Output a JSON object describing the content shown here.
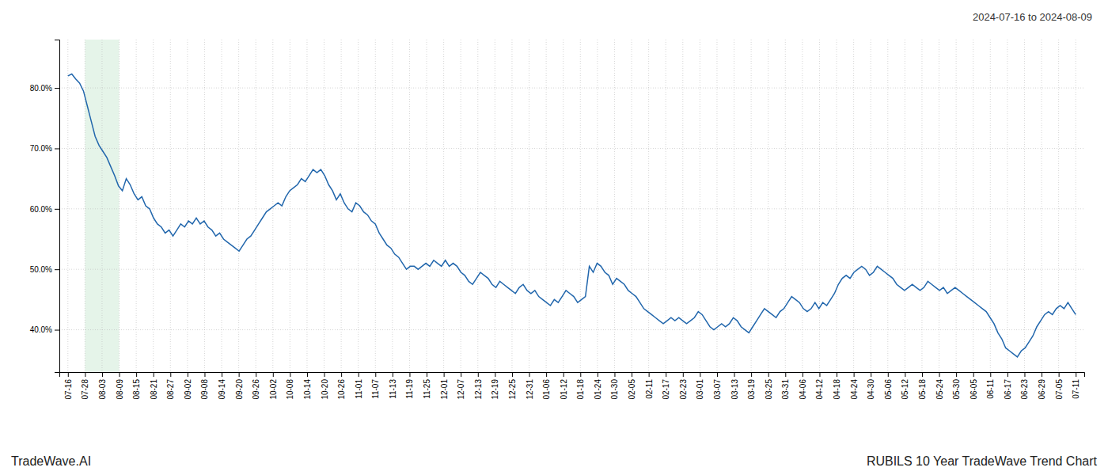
{
  "chart_data": {
    "type": "line",
    "title": "RUBILS 10 Year TradeWave Trend Chart",
    "subtitle": "2024-07-16 to 2024-08-09",
    "annotations": [
      "TradeWave.AI"
    ],
    "color": "#2166ac",
    "grid": true,
    "highlight": {
      "start": 1,
      "end": 3,
      "color": "#d4edda"
    },
    "xlim": [
      -0.5,
      59.5
    ],
    "xticks": [
      {
        "value": 0,
        "label": "07-16"
      },
      {
        "value": 1,
        "label": "07-28"
      },
      {
        "value": 2,
        "label": "08-03"
      },
      {
        "value": 3,
        "label": "08-09"
      },
      {
        "value": 4,
        "label": "08-15"
      },
      {
        "value": 5,
        "label": "08-21"
      },
      {
        "value": 6,
        "label": "08-27"
      },
      {
        "value": 7,
        "label": "09-02"
      },
      {
        "value": 8,
        "label": "09-08"
      },
      {
        "value": 9,
        "label": "09-14"
      },
      {
        "value": 10,
        "label": "09-20"
      },
      {
        "value": 11,
        "label": "09-26"
      },
      {
        "value": 12,
        "label": "10-02"
      },
      {
        "value": 13,
        "label": "10-08"
      },
      {
        "value": 14,
        "label": "10-14"
      },
      {
        "value": 15,
        "label": "10-20"
      },
      {
        "value": 16,
        "label": "10-26"
      },
      {
        "value": 17,
        "label": "11-01"
      },
      {
        "value": 18,
        "label": "11-07"
      },
      {
        "value": 19,
        "label": "11-13"
      },
      {
        "value": 20,
        "label": "11-19"
      },
      {
        "value": 21,
        "label": "11-25"
      },
      {
        "value": 22,
        "label": "12-01"
      },
      {
        "value": 23,
        "label": "12-07"
      },
      {
        "value": 24,
        "label": "12-13"
      },
      {
        "value": 25,
        "label": "12-19"
      },
      {
        "value": 26,
        "label": "12-25"
      },
      {
        "value": 27,
        "label": "12-31"
      },
      {
        "value": 28,
        "label": "01-06"
      },
      {
        "value": 29,
        "label": "01-12"
      },
      {
        "value": 30,
        "label": "01-18"
      },
      {
        "value": 31,
        "label": "01-24"
      },
      {
        "value": 32,
        "label": "01-30"
      },
      {
        "value": 33,
        "label": "02-05"
      },
      {
        "value": 34,
        "label": "02-11"
      },
      {
        "value": 35,
        "label": "02-17"
      },
      {
        "value": 36,
        "label": "02-23"
      },
      {
        "value": 37,
        "label": "03-01"
      },
      {
        "value": 38,
        "label": "03-07"
      },
      {
        "value": 39,
        "label": "03-13"
      },
      {
        "value": 40,
        "label": "03-19"
      },
      {
        "value": 41,
        "label": "03-25"
      },
      {
        "value": 42,
        "label": "03-31"
      },
      {
        "value": 43,
        "label": "04-06"
      },
      {
        "value": 44,
        "label": "04-12"
      },
      {
        "value": 45,
        "label": "04-18"
      },
      {
        "value": 46,
        "label": "04-24"
      },
      {
        "value": 47,
        "label": "04-30"
      },
      {
        "value": 48,
        "label": "05-06"
      },
      {
        "value": 49,
        "label": "05-12"
      },
      {
        "value": 50,
        "label": "05-18"
      },
      {
        "value": 51,
        "label": "05-24"
      },
      {
        "value": 52,
        "label": "05-30"
      },
      {
        "value": 53,
        "label": "06-05"
      },
      {
        "value": 54,
        "label": "06-11"
      },
      {
        "value": 55,
        "label": "06-17"
      },
      {
        "value": 56,
        "label": "06-23"
      },
      {
        "value": 57,
        "label": "06-29"
      },
      {
        "value": 58,
        "label": "07-05"
      },
      {
        "value": 59,
        "label": "07-11"
      }
    ],
    "ylim": [
      33,
      88
    ],
    "yticks": [
      {
        "value": 40,
        "label": "40.0%"
      },
      {
        "value": 50,
        "label": "50.0%"
      },
      {
        "value": 60,
        "label": "60.0%"
      },
      {
        "value": 70,
        "label": "70.0%"
      },
      {
        "value": 80,
        "label": "80.0%"
      }
    ],
    "values": [
      82.0,
      82.3,
      81.5,
      80.8,
      79.5,
      77.0,
      74.5,
      72.0,
      70.5,
      69.5,
      68.5,
      67.0,
      65.5,
      63.8,
      63.0,
      65.0,
      64.0,
      62.5,
      61.5,
      62.0,
      60.5,
      60.0,
      58.5,
      57.5,
      57.0,
      56.0,
      56.5,
      55.5,
      56.5,
      57.5,
      57.0,
      58.0,
      57.5,
      58.5,
      57.5,
      58.0,
      57.0,
      56.5,
      55.5,
      56.0,
      55.0,
      54.5,
      54.0,
      53.5,
      53.0,
      54.0,
      55.0,
      55.5,
      56.5,
      57.5,
      58.5,
      59.5,
      60.0,
      60.5,
      61.0,
      60.5,
      62.0,
      63.0,
      63.5,
      64.0,
      65.0,
      64.5,
      65.5,
      66.5,
      66.0,
      66.5,
      65.5,
      64.0,
      63.0,
      61.5,
      62.5,
      61.0,
      60.0,
      59.5,
      61.0,
      60.5,
      59.5,
      59.0,
      58.0,
      57.5,
      56.0,
      55.0,
      54.0,
      53.5,
      52.5,
      52.0,
      51.0,
      50.0,
      50.5,
      50.5,
      50.0,
      50.5,
      51.0,
      50.5,
      51.5,
      51.0,
      50.5,
      51.5,
      50.5,
      51.0,
      50.5,
      49.5,
      49.0,
      48.0,
      47.5,
      48.5,
      49.5,
      49.0,
      48.5,
      47.5,
      47.0,
      48.0,
      47.5,
      47.0,
      46.5,
      46.0,
      47.0,
      47.5,
      46.5,
      46.0,
      46.5,
      45.5,
      45.0,
      44.5,
      44.0,
      45.0,
      44.5,
      45.5,
      46.5,
      46.0,
      45.5,
      44.5,
      45.0,
      45.5,
      50.5,
      49.5,
      51.0,
      50.5,
      49.5,
      49.0,
      47.5,
      48.5,
      48.0,
      47.5,
      46.5,
      46.0,
      45.5,
      44.5,
      43.5,
      43.0,
      42.5,
      42.0,
      41.5,
      41.0,
      41.5,
      42.0,
      41.5,
      42.0,
      41.5,
      41.0,
      41.5,
      42.0,
      43.0,
      42.5,
      41.5,
      40.5,
      40.0,
      40.5,
      41.0,
      40.5,
      41.0,
      42.0,
      41.5,
      40.5,
      40.0,
      39.5,
      40.5,
      41.5,
      42.5,
      43.5,
      43.0,
      42.5,
      42.0,
      43.0,
      43.5,
      44.5,
      45.5,
      45.0,
      44.5,
      43.5,
      43.0,
      43.5,
      44.5,
      43.5,
      44.5,
      44.0,
      45.0,
      46.0,
      47.5,
      48.5,
      49.0,
      48.5,
      49.5,
      50.0,
      50.5,
      50.0,
      49.0,
      49.5,
      50.5,
      50.0,
      49.5,
      49.0,
      48.5,
      47.5,
      47.0,
      46.5,
      47.0,
      47.5,
      47.0,
      46.5,
      47.0,
      48.0,
      47.5,
      47.0,
      46.5,
      47.0,
      46.0,
      46.5,
      47.0,
      46.5,
      46.0,
      45.5,
      45.0,
      44.5,
      44.0,
      43.5,
      43.0,
      42.0,
      41.0,
      39.5,
      38.5,
      37.0,
      36.5,
      36.0,
      35.5,
      36.5,
      37.0,
      38.0,
      39.0,
      40.5,
      41.5,
      42.5,
      43.0,
      42.5,
      43.5,
      44.0,
      43.5,
      44.5,
      43.5,
      42.5
    ]
  }
}
